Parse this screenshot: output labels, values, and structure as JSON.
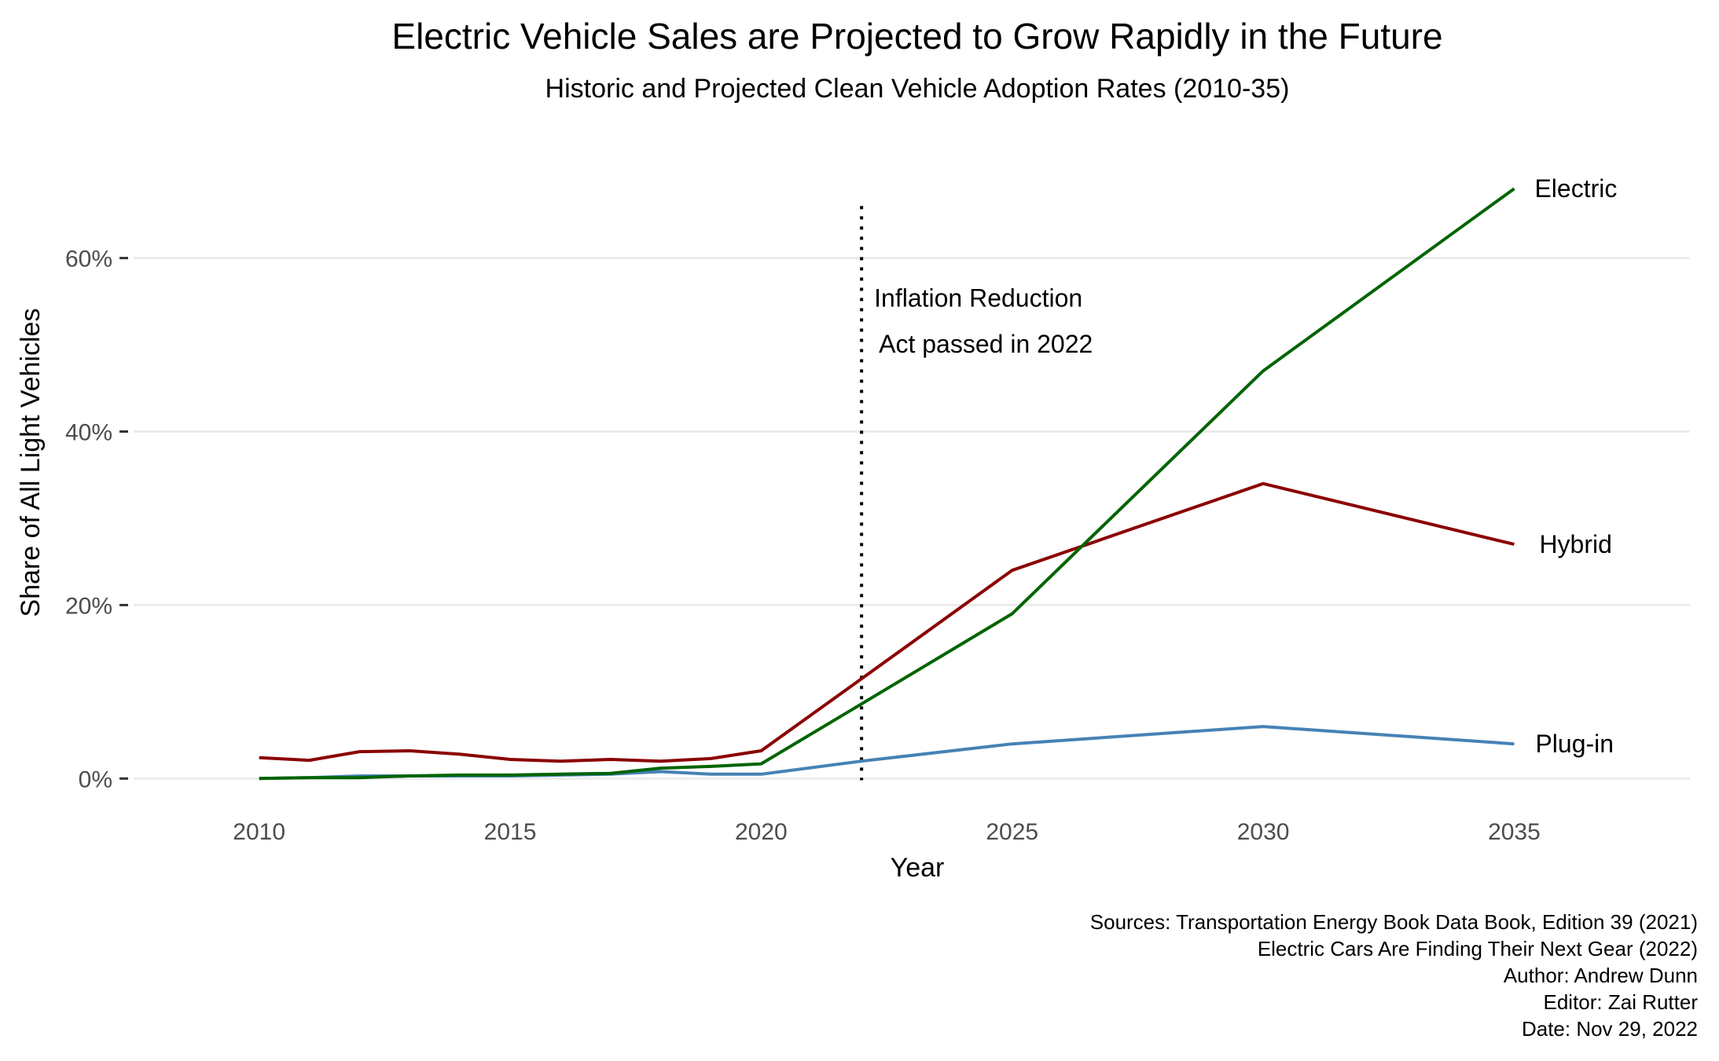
{
  "chart_data": {
    "type": "line",
    "title": "Electric Vehicle Sales are Projected to Grow Rapidly in the Future",
    "subtitle": "Historic and Projected Clean Vehicle Adoption Rates (2010-35)",
    "xlabel": "Year",
    "ylabel": "Share of All Light Vehicles",
    "xlim": [
      2007.5,
      2038.5
    ],
    "ylim": [
      -3.5,
      73
    ],
    "x_ticks": [
      2010,
      2015,
      2020,
      2025,
      2030,
      2035
    ],
    "x_tick_labels": [
      "2010",
      "2015",
      "2020",
      "2025",
      "2030",
      "2035"
    ],
    "y_ticks": [
      0,
      20,
      40,
      60
    ],
    "y_tick_labels": [
      "0%",
      "20%",
      "40%",
      "60%"
    ],
    "grid": true,
    "legend": "none (direct labels at line ends)",
    "series": [
      {
        "name": "Plug-in",
        "color": "#4682B4",
        "x": [
          2010,
          2011,
          2012,
          2013,
          2014,
          2015,
          2016,
          2017,
          2018,
          2019,
          2020,
          2022,
          2025,
          2030,
          2035
        ],
        "values": [
          0.0,
          0.1,
          0.3,
          0.3,
          0.3,
          0.3,
          0.4,
          0.5,
          0.8,
          0.5,
          0.5,
          2.0,
          4.0,
          6.0,
          4.0
        ]
      },
      {
        "name": "Hybrid",
        "color": "#8B0000",
        "x": [
          2010,
          2011,
          2012,
          2013,
          2014,
          2015,
          2016,
          2017,
          2018,
          2019,
          2020,
          2022,
          2025,
          2030,
          2035
        ],
        "values": [
          2.4,
          2.1,
          3.1,
          3.2,
          2.8,
          2.2,
          2.0,
          2.2,
          2.0,
          2.3,
          3.2,
          11.5,
          24.0,
          34.0,
          27.0
        ]
      },
      {
        "name": "Electric",
        "color": "#006400",
        "x": [
          2010,
          2011,
          2012,
          2013,
          2014,
          2015,
          2016,
          2017,
          2018,
          2019,
          2020,
          2022,
          2025,
          2030,
          2035
        ],
        "values": [
          0.0,
          0.1,
          0.1,
          0.3,
          0.4,
          0.4,
          0.5,
          0.6,
          1.2,
          1.4,
          1.7,
          8.6,
          19.0,
          47.0,
          68.0
        ]
      }
    ],
    "annotation": {
      "x": 2022,
      "line1": "Inflation Reduction",
      "line2": "Act passed in 2022"
    },
    "caption": [
      "Sources: Transportation Energy Book Data Book, Edition 39 (2021)",
      "Electric Cars Are Finding Their Next Gear (2022)",
      "Author: Andrew Dunn",
      "Editor: Zai Rutter",
      "Date: Nov 29, 2022"
    ]
  }
}
